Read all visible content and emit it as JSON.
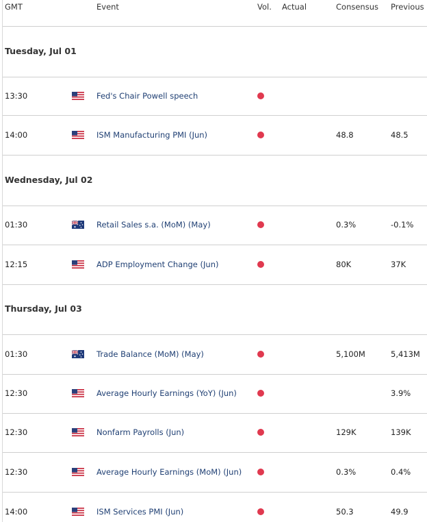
{
  "header": [
    "GMT",
    "Event",
    "Vol.",
    "Actual",
    "Consensus",
    "Previous"
  ],
  "days": [
    {
      "label": "Tuesday, Jul 01",
      "events": [
        {
          "time": "13:30",
          "event": "Fed's Chair Powell speech"
        },
        {
          "time": "14:00",
          "event": "ISM Manufacturing PMI (Jun)",
          "consensus": "48.8",
          "previous": "48.5"
        }
      ]
    },
    {
      "label": "Wednesday, Jul 02",
      "events": [
        {
          "time": "01:30",
          "event": "Retail Sales s.a. (MoM) (May)",
          "consensus": "0.3%",
          "previous": "-0.1%"
        },
        {
          "time": "12:15",
          "event": "ADP Employment Change (Jun)",
          "consensus": "80K",
          "previous": "37K"
        }
      ]
    },
    {
      "label": "Thursday, Jul 03",
      "events": [
        {
          "time": "01:30",
          "event": "Trade Balance (MoM) (May)",
          "consensus": "5,100M",
          "previous": "5,413M"
        },
        {
          "time": "12:30",
          "event": "Average Hourly Earnings (YoY) (Jun)",
          "previous": "3.9%"
        },
        {
          "time": "12:30",
          "event": "Nonfarm Payrolls (Jun)",
          "consensus": "129K",
          "previous": "139K"
        },
        {
          "time": "12:30",
          "event": "Average Hourly Earnings (MoM) (Jun)",
          "consensus": "0.3%",
          "previous": "0.4%"
        },
        {
          "time": "14:00",
          "event": "ISM Services PMI (Jun)",
          "consensus": "50.3",
          "previous": "49.9"
        }
      ]
    }
  ]
}
